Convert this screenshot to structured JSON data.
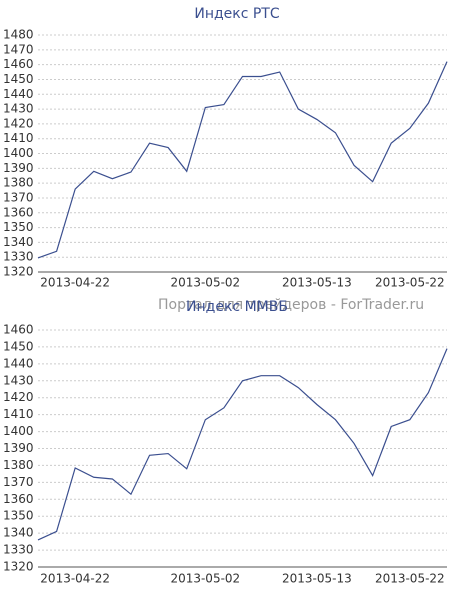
{
  "chart_data": [
    {
      "type": "line",
      "title": "Индекс РТС",
      "categories": [
        null,
        null,
        "2013-04-22",
        null,
        null,
        null,
        null,
        null,
        null,
        "2013-05-02",
        null,
        null,
        null,
        null,
        null,
        "2013-05-13",
        null,
        null,
        null,
        null,
        "2013-05-22",
        null,
        null
      ],
      "series": [
        {
          "name": "Индекс РТС",
          "color": "#3b4f8f",
          "values": [
            1329.5,
            1334,
            1376,
            1388,
            1383,
            1387.5,
            1407,
            1404,
            1388,
            1431,
            1433,
            1452,
            1452,
            1455,
            1430,
            1423,
            1414,
            1392,
            1381,
            1407,
            1417,
            1434,
            1462
          ]
        }
      ],
      "ylim": [
        1320,
        1480
      ],
      "yticks": [
        1320,
        1330,
        1340,
        1350,
        1360,
        1370,
        1380,
        1390,
        1400,
        1410,
        1420,
        1430,
        1440,
        1450,
        1460,
        1470,
        1480
      ],
      "grid": true
    },
    {
      "type": "line",
      "title": "Индекс ММВБ",
      "categories": [
        null,
        null,
        "2013-04-22",
        null,
        null,
        null,
        null,
        null,
        null,
        "2013-05-02",
        null,
        null,
        null,
        null,
        null,
        "2013-05-13",
        null,
        null,
        null,
        null,
        "2013-05-22",
        null,
        null
      ],
      "series": [
        {
          "name": "Индекс ММВБ",
          "color": "#3b4f8f",
          "values": [
            1336,
            1341,
            1378.5,
            1373,
            1372,
            1363,
            1386,
            1387,
            1378,
            1407,
            1414,
            1430,
            1433,
            1433,
            1426,
            1416,
            1407,
            1393,
            1374,
            1403,
            1407,
            1423,
            1449
          ]
        }
      ],
      "ylim": [
        1320,
        1460
      ],
      "yticks": [
        1320,
        1330,
        1340,
        1350,
        1360,
        1370,
        1380,
        1390,
        1400,
        1410,
        1420,
        1430,
        1440,
        1450,
        1460
      ],
      "grid": true
    }
  ],
  "watermark": "Портал для трейдеров - ForTrader.ru"
}
